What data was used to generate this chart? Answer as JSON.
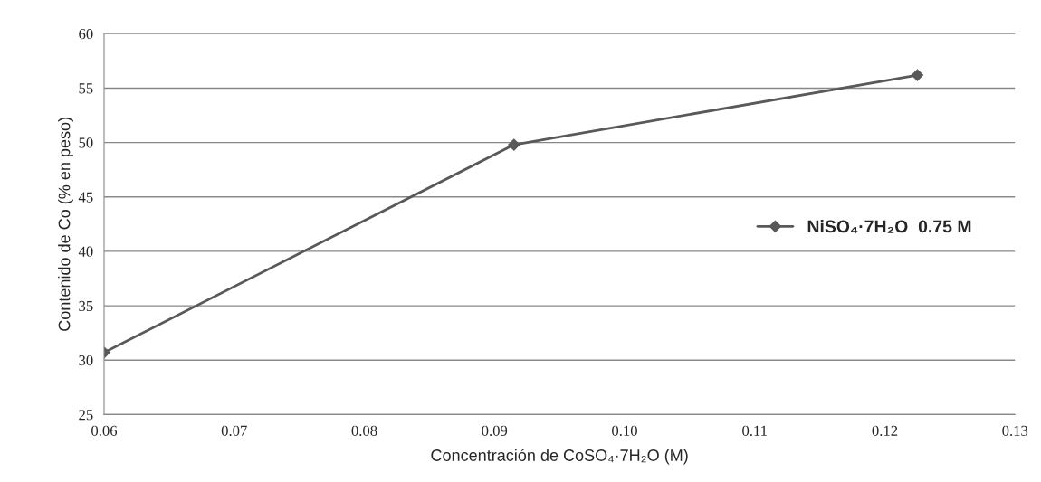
{
  "chart_data": {
    "type": "line",
    "xlabel": "Concentración de CoSO₄·7H₂O (M)",
    "ylabel": "Contenido de Co (% en peso)",
    "x": [
      0.06,
      0.0915,
      0.1225
    ],
    "series": [
      {
        "name": "NiSO₄·7H₂O  0.75 M",
        "color": "#595959",
        "values": [
          30.7,
          49.8,
          56.2
        ]
      }
    ],
    "xlim": [
      0.06,
      0.13
    ],
    "xticks": [
      0.06,
      0.07,
      0.08,
      0.09,
      {
        "value": 0.1,
        "label": "0.10"
      },
      0.11,
      0.12,
      0.13
    ],
    "ylim": [
      25,
      60
    ],
    "yticks": [
      25,
      30,
      35,
      40,
      45,
      50,
      55,
      60
    ],
    "grid": "y",
    "legend": "right",
    "marker": "diamond",
    "line_style": "solid"
  }
}
